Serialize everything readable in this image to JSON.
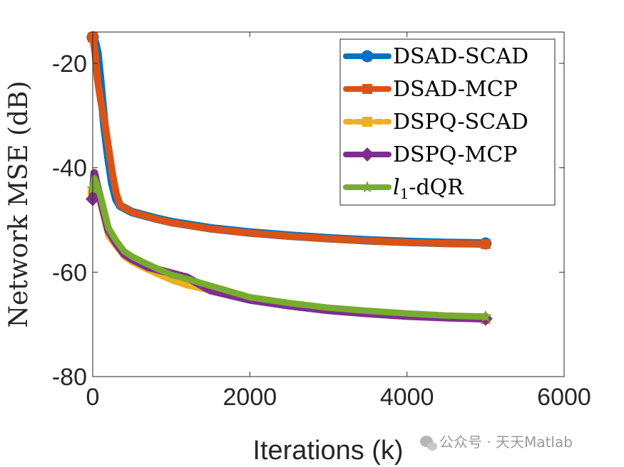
{
  "chart_data": {
    "type": "line",
    "xlabel": "Iterations (k)",
    "ylabel": "Network MSE (dB)",
    "xlim": [
      0,
      6000
    ],
    "ylim": [
      -80,
      -14
    ],
    "xticks": [
      0,
      2000,
      4000,
      6000
    ],
    "yticks": [
      -80,
      -60,
      -40,
      -20
    ],
    "legend_position": "top-right",
    "series": [
      {
        "name": "DSAD-SCAD",
        "color": "#0072BD",
        "marker": "circle",
        "x": [
          0,
          30,
          60,
          100,
          150,
          200,
          250,
          300,
          350,
          500,
          800,
          1000,
          1500,
          2000,
          2500,
          3000,
          3500,
          4000,
          4500,
          5000
        ],
        "y": [
          -15,
          -16,
          -18,
          -24,
          -32,
          -38,
          -43,
          -46,
          -47.3,
          -48.5,
          -49.7,
          -50.4,
          -51.6,
          -52.4,
          -53.0,
          -53.5,
          -53.9,
          -54.2,
          -54.4,
          -54.5
        ]
      },
      {
        "name": "DSAD-MCP",
        "color": "#D95319",
        "marker": "square",
        "x": [
          0,
          30,
          60,
          100,
          150,
          200,
          250,
          300,
          350,
          500,
          800,
          1000,
          1500,
          2000,
          2500,
          3000,
          3500,
          4000,
          4500,
          5000
        ],
        "y": [
          -15,
          -18,
          -23,
          -27,
          -31,
          -36,
          -41,
          -45,
          -47.2,
          -48.5,
          -49.8,
          -50.5,
          -51.7,
          -52.5,
          -53.1,
          -53.6,
          -54.0,
          -54.3,
          -54.5,
          -54.6
        ]
      },
      {
        "name": "DSPQ-SCAD",
        "color": "#EDB120",
        "marker": "square",
        "x": [
          0,
          20,
          50,
          100,
          150,
          200,
          300,
          400,
          500,
          700,
          1000,
          1200,
          1500,
          2000,
          2500,
          3000,
          3500,
          4000,
          4500,
          5000
        ],
        "y": [
          -45,
          -42,
          -44,
          -47,
          -50,
          -53,
          -55,
          -57,
          -58,
          -59.5,
          -61.5,
          -62.5,
          -63.5,
          -65.0,
          -66.2,
          -67.2,
          -67.9,
          -68.4,
          -68.8,
          -69.0
        ]
      },
      {
        "name": "DSPQ-MCP",
        "color": "#7E2F8E",
        "marker": "diamond",
        "x": [
          0,
          20,
          50,
          100,
          150,
          200,
          300,
          400,
          500,
          700,
          1000,
          1200,
          1500,
          2000,
          2500,
          3000,
          3500,
          4000,
          4500,
          5000
        ],
        "y": [
          -46,
          -41,
          -43,
          -46,
          -49,
          -52,
          -54.5,
          -56.5,
          -57.5,
          -59.0,
          -60.2,
          -61.0,
          -63.5,
          -65.3,
          -66.4,
          -67.3,
          -67.9,
          -68.4,
          -68.7,
          -68.9
        ]
      },
      {
        "name": "l1-dQR",
        "label_base": "l",
        "label_sub": "1",
        "label_rest": "-dQR",
        "color": "#77AC30",
        "marker": "star",
        "x": [
          0,
          20,
          50,
          100,
          150,
          200,
          300,
          400,
          500,
          700,
          1000,
          1200,
          1500,
          2000,
          2500,
          3000,
          3500,
          4000,
          4500,
          5000
        ],
        "y": [
          -44,
          -42,
          -43,
          -45.5,
          -48.5,
          -51.5,
          -54,
          -56,
          -57,
          -58.5,
          -60.5,
          -61.3,
          -62.6,
          -64.8,
          -65.9,
          -66.8,
          -67.4,
          -67.9,
          -68.3,
          -68.5
        ]
      }
    ]
  },
  "watermark": {
    "text": "公众号 · 天天Matlab",
    "icon": "wechat-icon"
  }
}
